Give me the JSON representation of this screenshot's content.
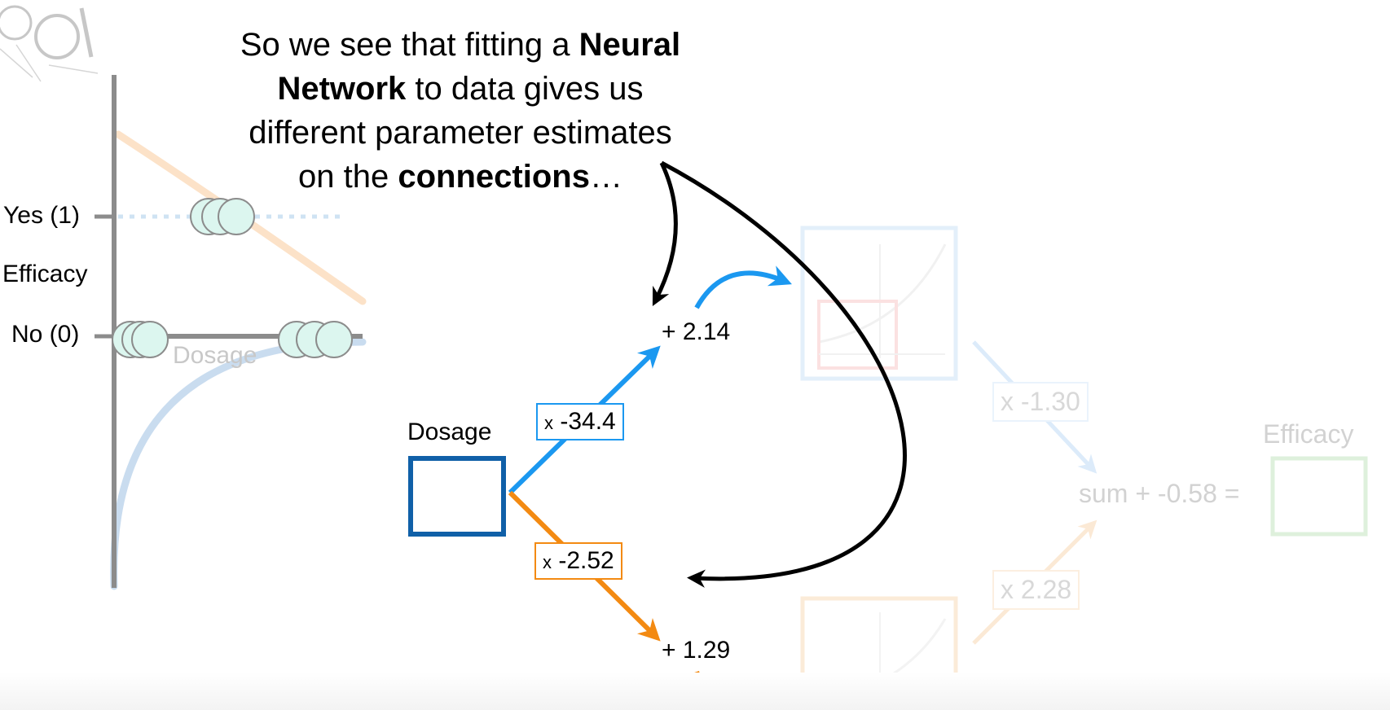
{
  "caption": {
    "part1": "So we see that fitting a ",
    "bold1": "Neural",
    "bold2": "Network",
    "part2": " to data gives us",
    "line3": "different parameter estimates",
    "part3": "on the ",
    "bold3": "connections",
    "part4": "…"
  },
  "graph": {
    "yes_label": "Yes (1)",
    "y_axis_label": "Efficacy",
    "no_label": "No (0)",
    "x_axis_label": "Dosage"
  },
  "network": {
    "input_label": "Dosage",
    "top_weight": "-34.4",
    "top_weight_prefix": "x",
    "top_bias": "+ 2.14",
    "bottom_weight": "-2.52",
    "bottom_weight_prefix": "x",
    "bottom_bias": "+ 1.29",
    "out_top_weight": "x -1.30",
    "out_bottom_weight": "x 2.28",
    "sum_label": "sum + -0.58 =",
    "output_label": "Efficacy"
  },
  "colors": {
    "blue": "#1b98f0",
    "orange": "#f38a12",
    "dark_blue": "#1060a8",
    "faded_blue": "#dcebfa",
    "faded_orange": "#fbe9d5",
    "faded_green": "#def0dc",
    "gray": "#8c8c8c"
  }
}
